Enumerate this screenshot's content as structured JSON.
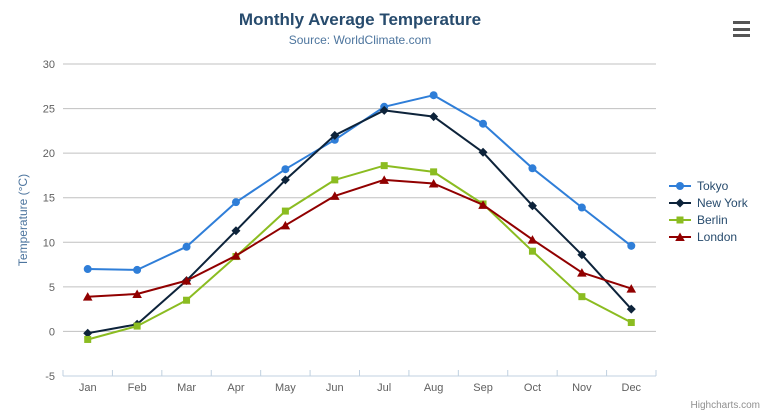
{
  "chart_data": {
    "type": "line",
    "title": "Monthly Average Temperature",
    "subtitle": "Source: WorldClimate.com",
    "categories": [
      "Jan",
      "Feb",
      "Mar",
      "Apr",
      "May",
      "Jun",
      "Jul",
      "Aug",
      "Sep",
      "Oct",
      "Nov",
      "Dec"
    ],
    "xlabel": "",
    "ylabel": "Temperature (°C)",
    "ylim": [
      -5,
      30
    ],
    "yticks": [
      -5,
      0,
      5,
      10,
      15,
      20,
      25,
      30
    ],
    "grid": true,
    "legend_position": "right",
    "series": [
      {
        "name": "Tokyo",
        "color": "#2f7ed8",
        "marker": "circle",
        "values": [
          7.0,
          6.9,
          9.5,
          14.5,
          18.2,
          21.5,
          25.2,
          26.5,
          23.3,
          18.3,
          13.9,
          9.6
        ]
      },
      {
        "name": "New York",
        "color": "#0d233a",
        "marker": "diamond",
        "values": [
          -0.2,
          0.8,
          5.7,
          11.3,
          17.0,
          22.0,
          24.8,
          24.1,
          20.1,
          14.1,
          8.6,
          2.5
        ]
      },
      {
        "name": "Berlin",
        "color": "#8bbc21",
        "marker": "square",
        "values": [
          -0.9,
          0.6,
          3.5,
          8.4,
          13.5,
          17.0,
          18.6,
          17.9,
          14.3,
          9.0,
          3.9,
          1.0
        ]
      },
      {
        "name": "London",
        "color": "#910000",
        "marker": "triangle",
        "values": [
          3.9,
          4.2,
          5.7,
          8.5,
          11.9,
          15.2,
          17.0,
          16.6,
          14.2,
          10.3,
          6.6,
          4.8
        ]
      }
    ]
  },
  "credits": {
    "label": "Highcharts.com"
  },
  "colors": {
    "background": "#ffffff",
    "title": "#274b6d",
    "subtitle": "#4d759e",
    "axis_title": "#4d759e",
    "axis_label": "#606060",
    "gridline": "#c0c0c0",
    "axis_line": "#c0d0e0",
    "credits": "#909090"
  }
}
